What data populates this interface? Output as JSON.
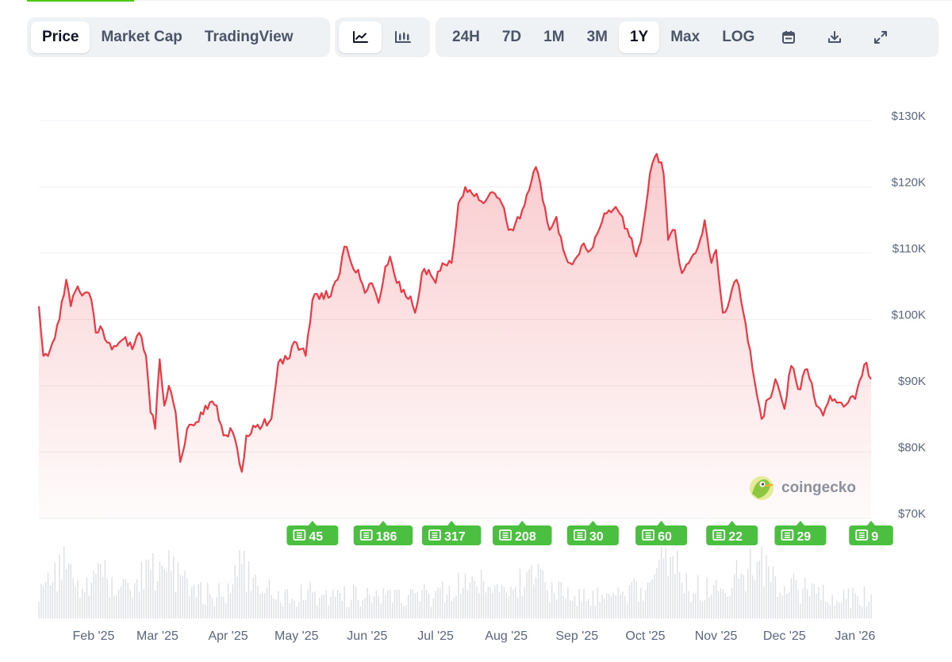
{
  "toolbar": {
    "type_tabs": [
      "Price",
      "Market Cap",
      "TradingView"
    ],
    "active_type": "Price",
    "chart_types": [
      "line-chart-icon",
      "candlestick-icon"
    ],
    "active_chart_type": "line-chart-icon",
    "ranges": [
      "24H",
      "7D",
      "1M",
      "3M",
      "1Y",
      "Max",
      "LOG"
    ],
    "active_range": "1Y",
    "tools": [
      "calendar-icon",
      "download-icon",
      "expand-icon"
    ]
  },
  "watermark": {
    "text": "coingecko"
  },
  "colors": {
    "line": "#ea3943",
    "badge": "#4bbf3f",
    "accent": "#4bcc00"
  },
  "news_badges": [
    {
      "date": "2025-05-08",
      "count": "45"
    },
    {
      "date": "2025-06-08",
      "count": "186"
    },
    {
      "date": "2025-07-08",
      "count": "317"
    },
    {
      "date": "2025-08-08",
      "count": "208"
    },
    {
      "date": "2025-09-08",
      "count": "30"
    },
    {
      "date": "2025-10-08",
      "count": "60"
    },
    {
      "date": "2025-11-08",
      "count": "22"
    },
    {
      "date": "2025-12-08",
      "count": "29"
    },
    {
      "date": "2026-01-08",
      "count": "9"
    }
  ],
  "chart_data": {
    "type": "area",
    "title": "",
    "xlabel": "",
    "ylabel": "",
    "y_tick_labels": [
      "$130K",
      "$120K",
      "$110K",
      "$100K",
      "$90K",
      "$80K",
      "$70K"
    ],
    "y_ticks": [
      130000,
      120000,
      110000,
      100000,
      90000,
      80000,
      70000
    ],
    "ylim": [
      70000,
      130000
    ],
    "x_tick_labels": [
      "Feb '25",
      "Mar '25",
      "Apr '25",
      "May '25",
      "Jun '25",
      "Jul '25",
      "Aug '25",
      "Sep '25",
      "Oct '25",
      "Nov '25",
      "Dec '25",
      "Jan '26"
    ],
    "x_ticks": [
      "2025-02-01",
      "2025-03-01",
      "2025-04-01",
      "2025-05-01",
      "2025-06-01",
      "2025-07-01",
      "2025-08-01",
      "2025-09-01",
      "2025-10-01",
      "2025-11-01",
      "2025-12-01",
      "2026-01-01"
    ],
    "xlim": [
      "2025-01-08",
      "2026-01-08"
    ],
    "grid": true,
    "series": [
      {
        "values": [
          [
            "2025-01-08",
            102000
          ],
          [
            "2025-01-10",
            94500
          ],
          [
            "2025-01-12",
            94500
          ],
          [
            "2025-01-14",
            96500
          ],
          [
            "2025-01-17",
            100000
          ],
          [
            "2025-01-20",
            106000
          ],
          [
            "2025-01-22",
            102000
          ],
          [
            "2025-01-25",
            105000
          ],
          [
            "2025-01-28",
            104000
          ],
          [
            "2025-01-31",
            103000
          ],
          [
            "2025-02-02",
            98000
          ],
          [
            "2025-02-04",
            99000
          ],
          [
            "2025-02-06",
            97000
          ],
          [
            "2025-02-10",
            96000
          ],
          [
            "2025-02-14",
            97000
          ],
          [
            "2025-02-18",
            95500
          ],
          [
            "2025-02-21",
            98000
          ],
          [
            "2025-02-24",
            94500
          ],
          [
            "2025-02-26",
            86000
          ],
          [
            "2025-02-28",
            83500
          ],
          [
            "2025-03-02",
            94000
          ],
          [
            "2025-03-04",
            87000
          ],
          [
            "2025-03-06",
            90000
          ],
          [
            "2025-03-09",
            86000
          ],
          [
            "2025-03-11",
            78500
          ],
          [
            "2025-03-14",
            83500
          ],
          [
            "2025-03-17",
            84000
          ],
          [
            "2025-03-20",
            86000
          ],
          [
            "2025-03-24",
            87500
          ],
          [
            "2025-03-27",
            87000
          ],
          [
            "2025-03-30",
            82500
          ],
          [
            "2025-04-03",
            83000
          ],
          [
            "2025-04-07",
            77000
          ],
          [
            "2025-04-09",
            82500
          ],
          [
            "2025-04-12",
            84000
          ],
          [
            "2025-04-16",
            84000
          ],
          [
            "2025-04-20",
            85000
          ],
          [
            "2025-04-23",
            93500
          ],
          [
            "2025-04-27",
            94000
          ],
          [
            "2025-05-01",
            96500
          ],
          [
            "2025-05-05",
            94500
          ],
          [
            "2025-05-08",
            103000
          ],
          [
            "2025-05-12",
            104000
          ],
          [
            "2025-05-16",
            103500
          ],
          [
            "2025-05-19",
            106000
          ],
          [
            "2025-05-22",
            111000
          ],
          [
            "2025-05-25",
            108500
          ],
          [
            "2025-05-28",
            107500
          ],
          [
            "2025-05-31",
            104000
          ],
          [
            "2025-06-03",
            105500
          ],
          [
            "2025-06-06",
            102500
          ],
          [
            "2025-06-09",
            108000
          ],
          [
            "2025-06-11",
            109500
          ],
          [
            "2025-06-14",
            105500
          ],
          [
            "2025-06-17",
            104500
          ],
          [
            "2025-06-20",
            103500
          ],
          [
            "2025-06-22",
            101000
          ],
          [
            "2025-06-25",
            107000
          ],
          [
            "2025-06-28",
            107500
          ],
          [
            "2025-07-01",
            105500
          ],
          [
            "2025-07-04",
            108500
          ],
          [
            "2025-07-08",
            108500
          ],
          [
            "2025-07-11",
            117500
          ],
          [
            "2025-07-14",
            120000
          ],
          [
            "2025-07-17",
            119000
          ],
          [
            "2025-07-20",
            118000
          ],
          [
            "2025-07-24",
            118500
          ],
          [
            "2025-07-27",
            119000
          ],
          [
            "2025-07-30",
            117500
          ],
          [
            "2025-08-02",
            113500
          ],
          [
            "2025-08-05",
            114500
          ],
          [
            "2025-08-08",
            116500
          ],
          [
            "2025-08-11",
            119500
          ],
          [
            "2025-08-14",
            123000
          ],
          [
            "2025-08-17",
            118000
          ],
          [
            "2025-08-20",
            113500
          ],
          [
            "2025-08-23",
            115500
          ],
          [
            "2025-08-26",
            110500
          ],
          [
            "2025-08-29",
            108500
          ],
          [
            "2025-09-01",
            109500
          ],
          [
            "2025-09-04",
            111500
          ],
          [
            "2025-09-07",
            110500
          ],
          [
            "2025-09-10",
            113000
          ],
          [
            "2025-09-14",
            116000
          ],
          [
            "2025-09-18",
            117000
          ],
          [
            "2025-09-21",
            115500
          ],
          [
            "2025-09-24",
            112500
          ],
          [
            "2025-09-27",
            109500
          ],
          [
            "2025-09-30",
            114000
          ],
          [
            "2025-10-03",
            122000
          ],
          [
            "2025-10-06",
            125000
          ],
          [
            "2025-10-09",
            122000
          ],
          [
            "2025-10-11",
            112000
          ],
          [
            "2025-10-14",
            113500
          ],
          [
            "2025-10-17",
            107000
          ],
          [
            "2025-10-20",
            108500
          ],
          [
            "2025-10-23",
            110000
          ],
          [
            "2025-10-27",
            115000
          ],
          [
            "2025-10-30",
            108500
          ],
          [
            "2025-11-01",
            110500
          ],
          [
            "2025-11-04",
            101000
          ],
          [
            "2025-11-07",
            103000
          ],
          [
            "2025-11-10",
            106000
          ],
          [
            "2025-11-13",
            101000
          ],
          [
            "2025-11-17",
            92500
          ],
          [
            "2025-11-21",
            85000
          ],
          [
            "2025-11-24",
            88000
          ],
          [
            "2025-11-27",
            91000
          ],
          [
            "2025-12-01",
            86500
          ],
          [
            "2025-12-04",
            93000
          ],
          [
            "2025-12-07",
            89500
          ],
          [
            "2025-12-11",
            92500
          ],
          [
            "2025-12-15",
            87000
          ],
          [
            "2025-12-18",
            85500
          ],
          [
            "2025-12-21",
            88500
          ],
          [
            "2025-12-25",
            87500
          ],
          [
            "2025-12-29",
            87500
          ],
          [
            "2026-01-01",
            88000
          ],
          [
            "2026-01-04",
            91500
          ],
          [
            "2026-01-06",
            93500
          ],
          [
            "2026-01-08",
            91000
          ]
        ]
      }
    ],
    "volume": {
      "values": [
        [
          "2025-01-08",
          38
        ],
        [
          "2025-01-15",
          52
        ],
        [
          "2025-01-20",
          85
        ],
        [
          "2025-01-25",
          44
        ],
        [
          "2025-01-31",
          48
        ],
        [
          "2025-02-05",
          62
        ],
        [
          "2025-02-12",
          36
        ],
        [
          "2025-02-19",
          40
        ],
        [
          "2025-02-26",
          78
        ],
        [
          "2025-03-03",
          70
        ],
        [
          "2025-03-10",
          58
        ],
        [
          "2025-03-17",
          40
        ],
        [
          "2025-03-24",
          32
        ],
        [
          "2025-03-31",
          34
        ],
        [
          "2025-04-07",
          72
        ],
        [
          "2025-04-14",
          36
        ],
        [
          "2025-04-21",
          38
        ],
        [
          "2025-04-28",
          30
        ],
        [
          "2025-05-05",
          34
        ],
        [
          "2025-05-12",
          36
        ],
        [
          "2025-05-19",
          30
        ],
        [
          "2025-05-26",
          32
        ],
        [
          "2025-06-02",
          30
        ],
        [
          "2025-06-09",
          34
        ],
        [
          "2025-06-16",
          32
        ],
        [
          "2025-06-23",
          34
        ],
        [
          "2025-06-30",
          30
        ],
        [
          "2025-07-07",
          40
        ],
        [
          "2025-07-14",
          52
        ],
        [
          "2025-07-21",
          48
        ],
        [
          "2025-07-28",
          34
        ],
        [
          "2025-08-04",
          38
        ],
        [
          "2025-08-11",
          58
        ],
        [
          "2025-08-18",
          46
        ],
        [
          "2025-08-25",
          42
        ],
        [
          "2025-09-01",
          30
        ],
        [
          "2025-09-08",
          32
        ],
        [
          "2025-09-15",
          28
        ],
        [
          "2025-09-22",
          34
        ],
        [
          "2025-09-29",
          40
        ],
        [
          "2025-10-06",
          58
        ],
        [
          "2025-10-11",
          92
        ],
        [
          "2025-10-18",
          50
        ],
        [
          "2025-10-25",
          40
        ],
        [
          "2025-11-01",
          44
        ],
        [
          "2025-11-08",
          52
        ],
        [
          "2025-11-15",
          62
        ],
        [
          "2025-11-21",
          88
        ],
        [
          "2025-11-28",
          50
        ],
        [
          "2025-12-05",
          42
        ],
        [
          "2025-12-12",
          38
        ],
        [
          "2025-12-19",
          36
        ],
        [
          "2025-12-26",
          28
        ],
        [
          "2026-01-02",
          30
        ],
        [
          "2026-01-08",
          32
        ]
      ]
    }
  }
}
